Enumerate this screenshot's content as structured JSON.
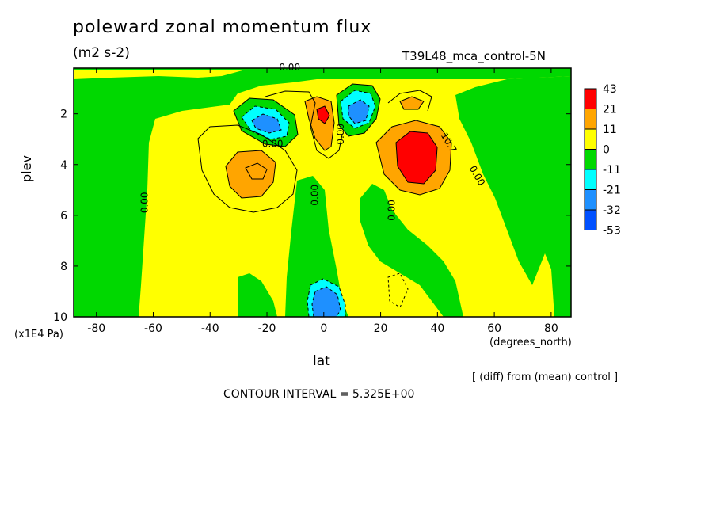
{
  "chart_data": {
    "type": "heatmap",
    "title": "poleward zonal momentum flux",
    "units": "(m2 s-2)",
    "run_label": "T39L48_mca_control-5N",
    "xlabel": "lat",
    "ylabel": "plev",
    "x_unit": "(degrees_north)",
    "y_unit": "(x1E4 Pa)",
    "xlim": [
      -88,
      87
    ],
    "ylim": [
      10,
      0.2
    ],
    "x_ticks": [
      -80,
      -60,
      -40,
      -20,
      0,
      20,
      40,
      60,
      80
    ],
    "y_ticks": [
      2,
      4,
      6,
      8,
      10
    ],
    "contour_interval_text": "CONTOUR INTERVAL = 5.325E+00",
    "diff_note": "[ (diff) from (mean) control ]",
    "colorbar": {
      "levels": [
        "43",
        "21",
        "11",
        "0",
        "-11",
        "-21",
        "-32",
        "-53"
      ],
      "colors": [
        "#ff0000",
        "#ffa500",
        "#ffff00",
        "#00d800",
        "#00ffff",
        "#1e90ff",
        "#0050ff"
      ]
    },
    "contour_labels": [
      {
        "text": "0.00",
        "lat": -12,
        "plev": 0.3
      },
      {
        "text": "0.00",
        "lat": -18,
        "plev": 3.3
      },
      {
        "text": "0.00",
        "lat": -62,
        "plev": 5.5
      },
      {
        "text": "0.00",
        "lat": -2,
        "plev": 5.2
      },
      {
        "text": "0.00",
        "lat": 25,
        "plev": 5.8
      },
      {
        "text": "0.00",
        "lat": 53,
        "plev": 4.5
      },
      {
        "text": "10.7",
        "lat": 43,
        "plev": 3.2
      },
      {
        "text": "0.00",
        "lat": 7,
        "plev": 2.8
      }
    ],
    "features": [
      {
        "kind": "max",
        "lat": 34,
        "plev": 3.3,
        "level": "21 to 43"
      },
      {
        "kind": "max",
        "lat": 0,
        "plev": 2.0,
        "level": "21 to 43"
      },
      {
        "kind": "max",
        "lat": -26,
        "plev": 4.1,
        "level": "11 to 21"
      },
      {
        "kind": "min",
        "lat": -22,
        "plev": 2.4,
        "level": "-32 to -21"
      },
      {
        "kind": "min",
        "lat": 12,
        "plev": 2.0,
        "level": "-32 to -21"
      },
      {
        "kind": "min",
        "lat": 4,
        "plev": 9.5,
        "level": "-32 to -21"
      }
    ]
  }
}
